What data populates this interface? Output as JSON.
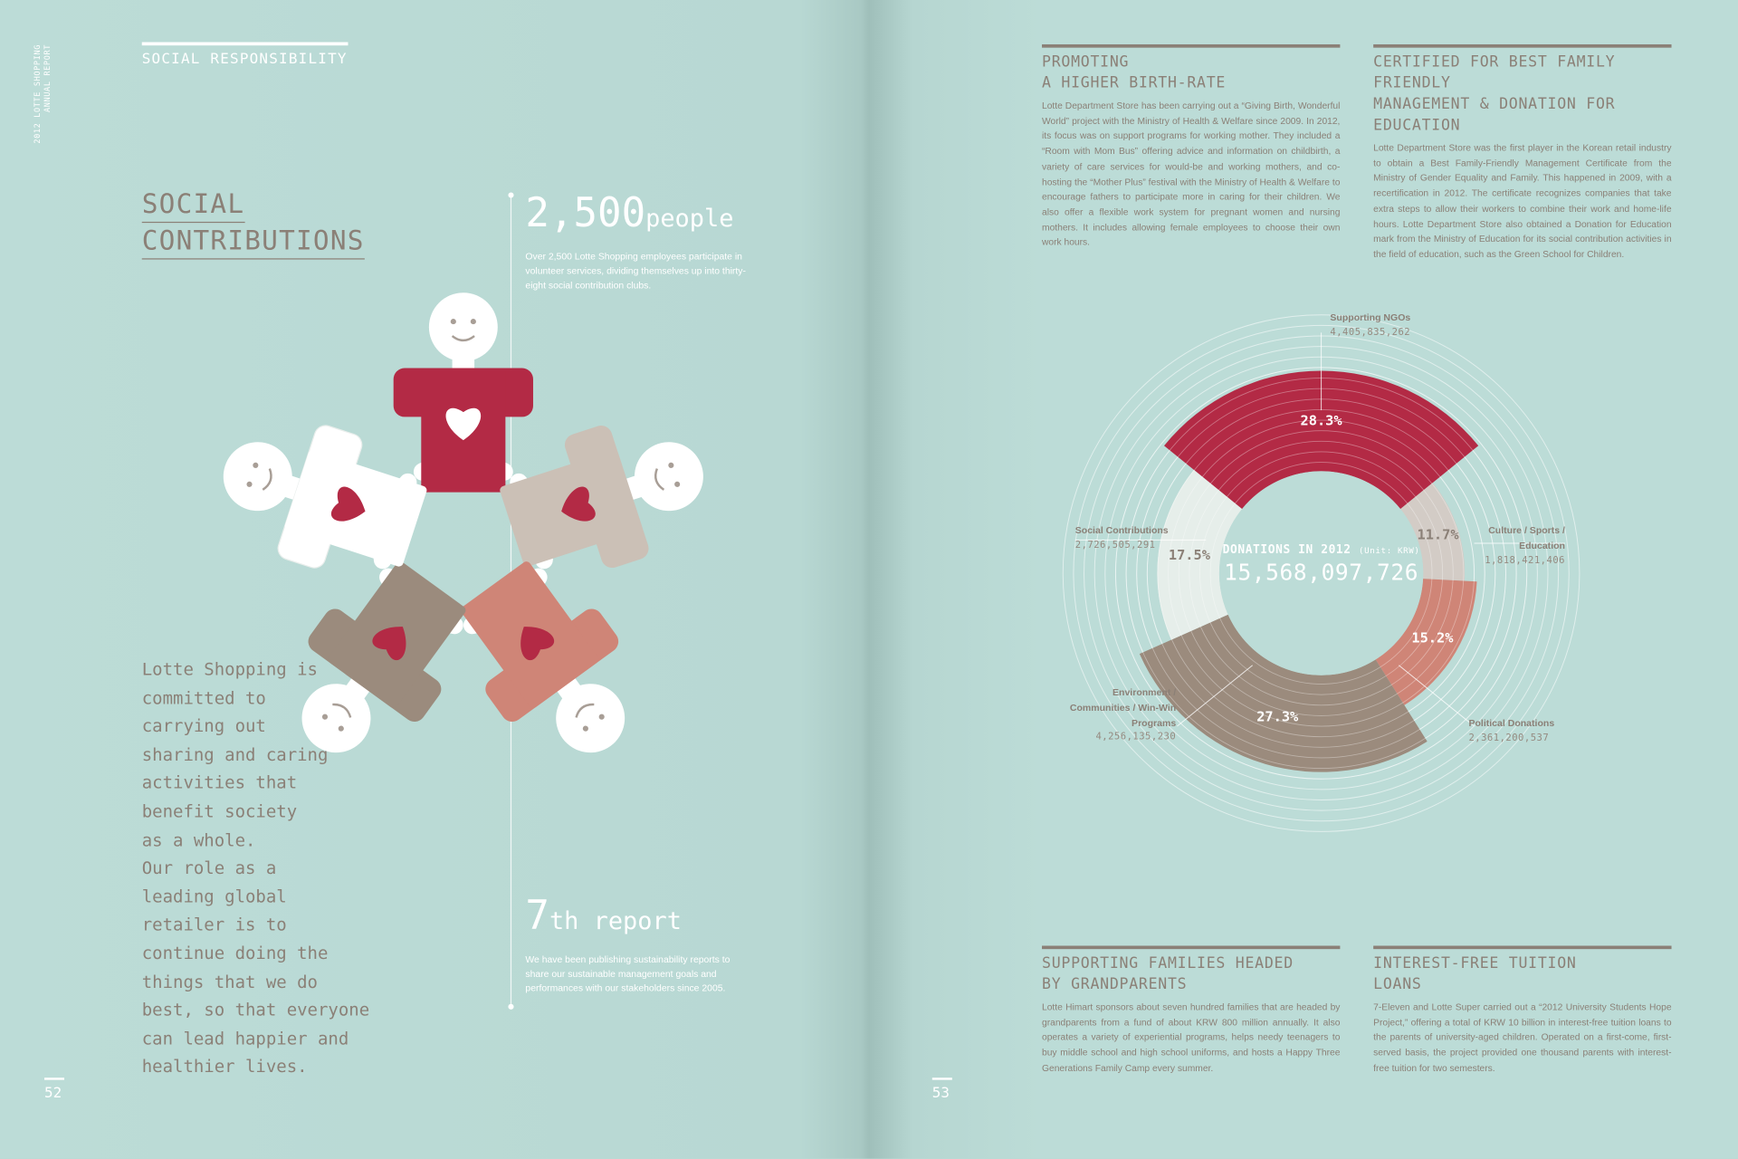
{
  "left_page": {
    "side_label": [
      "2012 LOTTE SHOPPING",
      "ANNUAL REPORT"
    ],
    "section": "SOCIAL RESPONSIBILITY",
    "title": [
      "SOCIAL",
      "CONTRIBUTIONS"
    ],
    "stat1": {
      "number": "2,500",
      "unit": "people",
      "text": "Over 2,500 Lotte Shopping employees participate in volunteer services, dividing themselves up into thirty-eight social contribution clubs."
    },
    "stat2": {
      "number": "7",
      "unit": "th report",
      "text": "We have been publishing sustainability reports to share our sustainable management goals and performances with our stakeholders since 2005."
    },
    "quote": [
      "Lotte Shopping is",
      "committed to",
      "carrying out",
      "sharing and caring",
      "activities that",
      "benefit society",
      "as a whole.",
      "Our role as a",
      "leading global",
      "retailer is to",
      "continue doing the",
      "things that we do",
      "best, so that everyone",
      "can lead happier and",
      "healthier lives."
    ],
    "page_number": "52"
  },
  "right_page": {
    "articles": [
      {
        "title": [
          "PROMOTING",
          "A HIGHER BIRTH-RATE"
        ],
        "body": "Lotte Department Store has been carrying out a “Giving Birth, Wonderful World” project with the Ministry of Health & Welfare since 2009. In 2012, its focus was on support programs for working mother. They included a “Room with Mom Bus” offering advice and information on childbirth, a variety of care services for would-be and working mothers, and co-hosting the “Mother Plus” festival with the Ministry of Health & Welfare to encourage fathers to participate more in caring for their children. We also offer a flexible work system for pregnant women and nursing mothers. It includes allowing female employees to choose their own work hours."
      },
      {
        "title": [
          "CERTIFIED FOR BEST FAMILY FRIENDLY",
          "MANAGEMENT & DONATION FOR EDUCATION"
        ],
        "body": "Lotte Department Store was the first player in the Korean retail industry to obtain a Best Family-Friendly Management Certificate from the Ministry of Gender Equality and Family. This happened in 2009, with a recertification in 2012. The certificate recognizes companies that take extra steps to allow their workers to combine their work and home-life hours. Lotte Department Store also obtained a Donation for Education mark from the Ministry of Education for its social contribution activities in the field of education, such as the Green School for Children."
      },
      {
        "title": [
          "SUPPORTING FAMILIES HEADED",
          "BY GRANDPARENTS"
        ],
        "body": "Lotte Himart sponsors about seven hundred families that are headed by grandparents from a fund of about KRW 800 million annually. It also operates a variety of experiential programs, helps needy teenagers to buy middle school and high school uniforms, and hosts a Happy Three Generations Family Camp every summer."
      },
      {
        "title": [
          "INTEREST-FREE TUITION",
          "LOANS"
        ],
        "body": "7-Eleven and Lotte Super carried out a “2012 University Students Hope Project,” offering a total of KRW 10 billion in interest-free tuition loans to the parents of university-aged children. Operated on a first-come, first-served basis, the project provided one thousand parents with interest-free tuition for two semesters."
      }
    ],
    "page_number": "53"
  },
  "donations": {
    "type": "pie",
    "title": "DONATIONS IN 2012",
    "unit": "(Unit: KRW)",
    "total": "15,568,097,726",
    "categories": [
      "Supporting NGOs",
      "Culture / Sports / Education",
      "Political Donations",
      "Environment / Communities / Win-Win Programs",
      "Social Contributions"
    ],
    "values": [
      28.3,
      11.7,
      15.2,
      27.3,
      17.5
    ],
    "value_labels": [
      "28.3%",
      "11.7%",
      "15.2%",
      "27.3%",
      "17.5%"
    ],
    "amounts": [
      "4,405,835,262",
      "1,818,421,406",
      "2,361,200,537",
      "4,256,135,230",
      "2,726,505,291"
    ],
    "colors": [
      "#b32a45",
      "#d3ccc6",
      "#cf8577",
      "#9b8b7d",
      "#e6eeea"
    ]
  }
}
